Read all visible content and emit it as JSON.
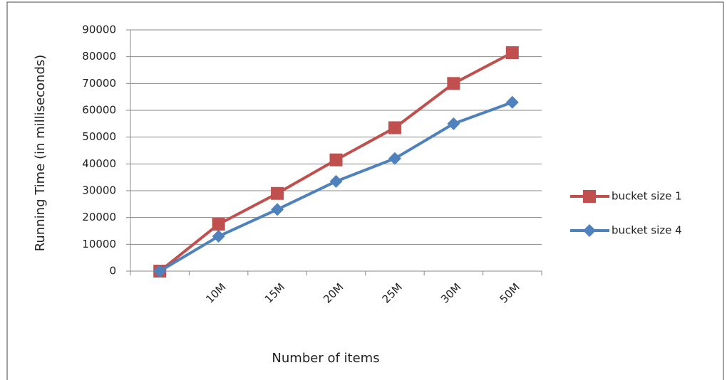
{
  "chart_data": {
    "type": "line",
    "categories": [
      null,
      "10M",
      "15M",
      "20M",
      "25M",
      "30M",
      "50M"
    ],
    "series": [
      {
        "name": "bucket size 1",
        "color": "#c0504d",
        "marker": "square",
        "values": [
          0,
          17500,
          29000,
          41500,
          53500,
          70000,
          81500
        ]
      },
      {
        "name": "bucket size 4",
        "color": "#4f81bd",
        "marker": "diamond",
        "values": [
          0,
          13000,
          23000,
          33500,
          42000,
          55000,
          63000
        ]
      }
    ],
    "ylim": [
      0,
      90000
    ],
    "yticks": [
      0,
      10000,
      20000,
      30000,
      40000,
      50000,
      60000,
      70000,
      80000,
      90000
    ],
    "xlabel": "Number of items",
    "ylabel": "Running Time (in milliseconds)",
    "grid": true,
    "legend": "right"
  }
}
